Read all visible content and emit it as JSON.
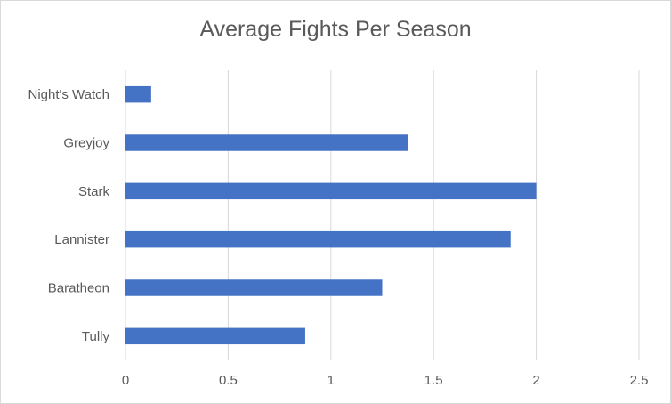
{
  "chart_data": {
    "type": "bar",
    "orientation": "horizontal",
    "title": "Average Fights Per Season",
    "categories": [
      "Night's Watch",
      "Greyjoy",
      "Stark",
      "Lannister",
      "Baratheon",
      "Tully"
    ],
    "values": [
      0.125,
      1.375,
      2.0,
      1.875,
      1.25,
      0.875
    ],
    "xlim": [
      0,
      2.5
    ],
    "xticks": [
      "0",
      "0.5",
      "1",
      "1.5",
      "2",
      "2.5"
    ],
    "grid": "vertical",
    "bar_color": "#4472c4",
    "grid_color": "#d9d9d9",
    "text_color": "#595959",
    "legend": "none"
  }
}
